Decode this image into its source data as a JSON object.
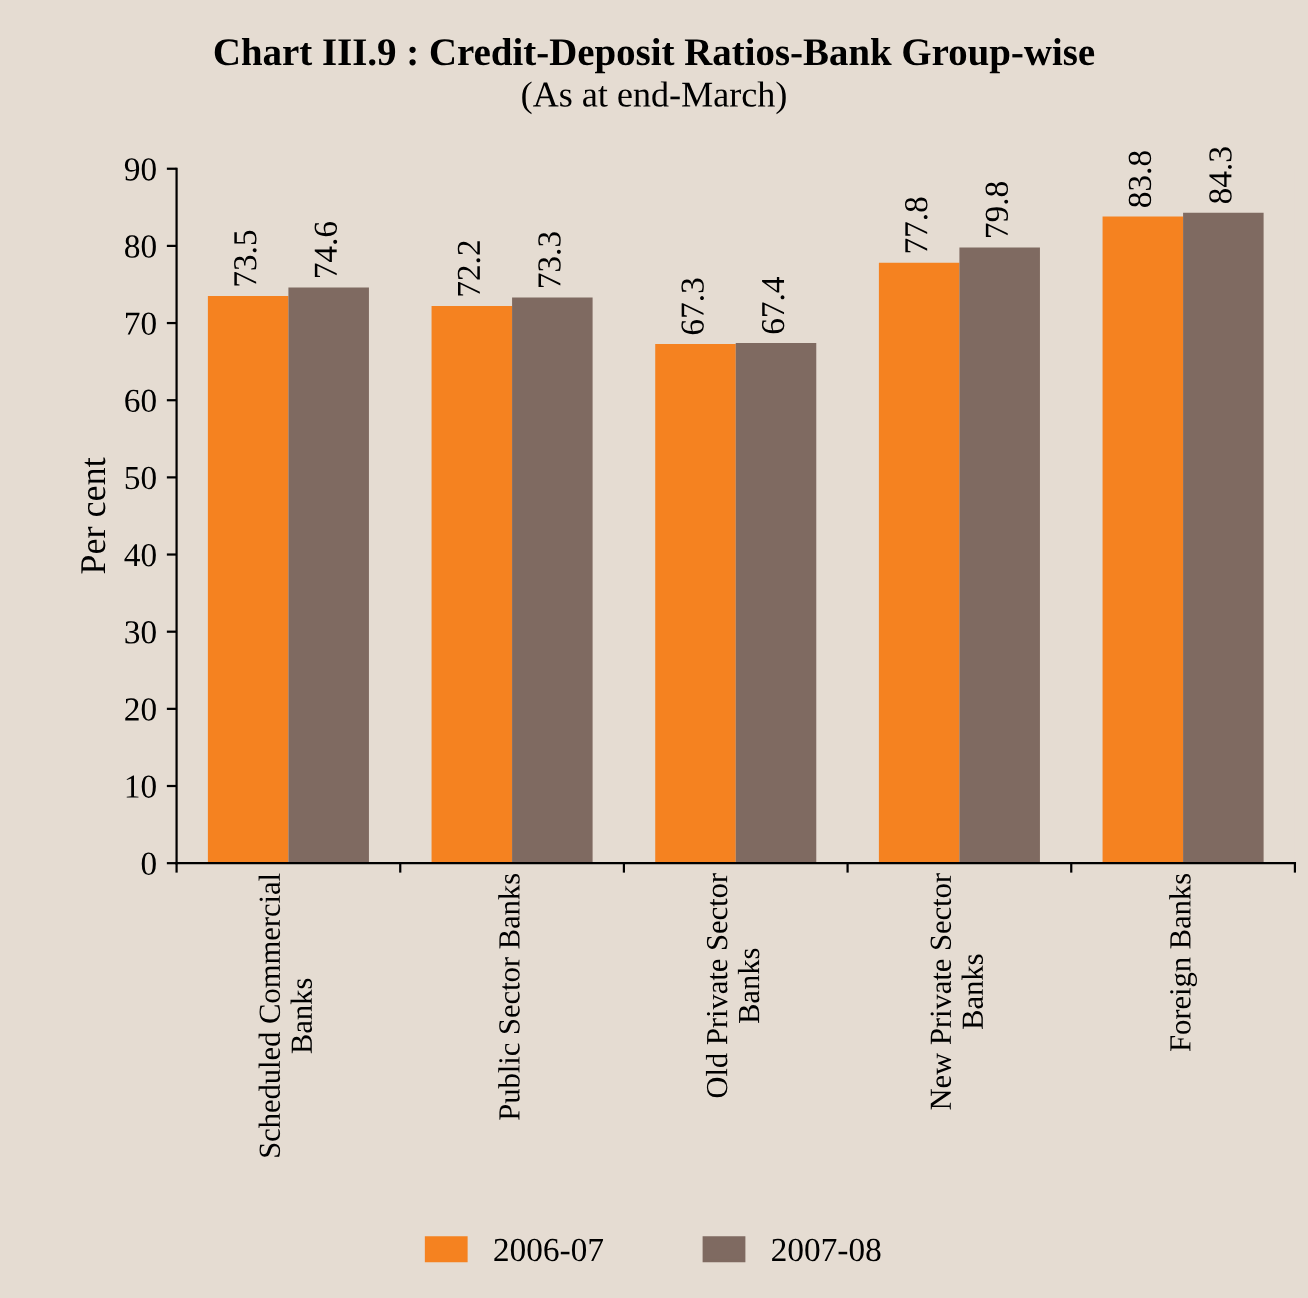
{
  "chart_data": {
    "type": "bar",
    "title": "Chart III.9 : Credit-Deposit Ratios-Bank Group-wise",
    "subtitle": "(As at end-March)",
    "ylabel": "Per cent",
    "categories": [
      "Scheduled Commercial\nBanks",
      "Public Sector Banks",
      "Old Private Sector\nBanks",
      "New Private Sector\nBanks",
      "Foreign Banks"
    ],
    "series": [
      {
        "name": "2006-07",
        "color": "#f58220",
        "values": [
          73.5,
          72.2,
          67.3,
          77.8,
          83.8
        ]
      },
      {
        "name": "2007-08",
        "color": "#7f6a61",
        "values": [
          74.6,
          73.3,
          67.4,
          79.8,
          84.3
        ]
      }
    ],
    "ylim": [
      0,
      90
    ],
    "yticks": [
      0,
      10,
      20,
      30,
      40,
      50,
      60,
      70,
      80,
      90
    ],
    "data_labels": true,
    "grid": false,
    "legend": "bottom"
  }
}
